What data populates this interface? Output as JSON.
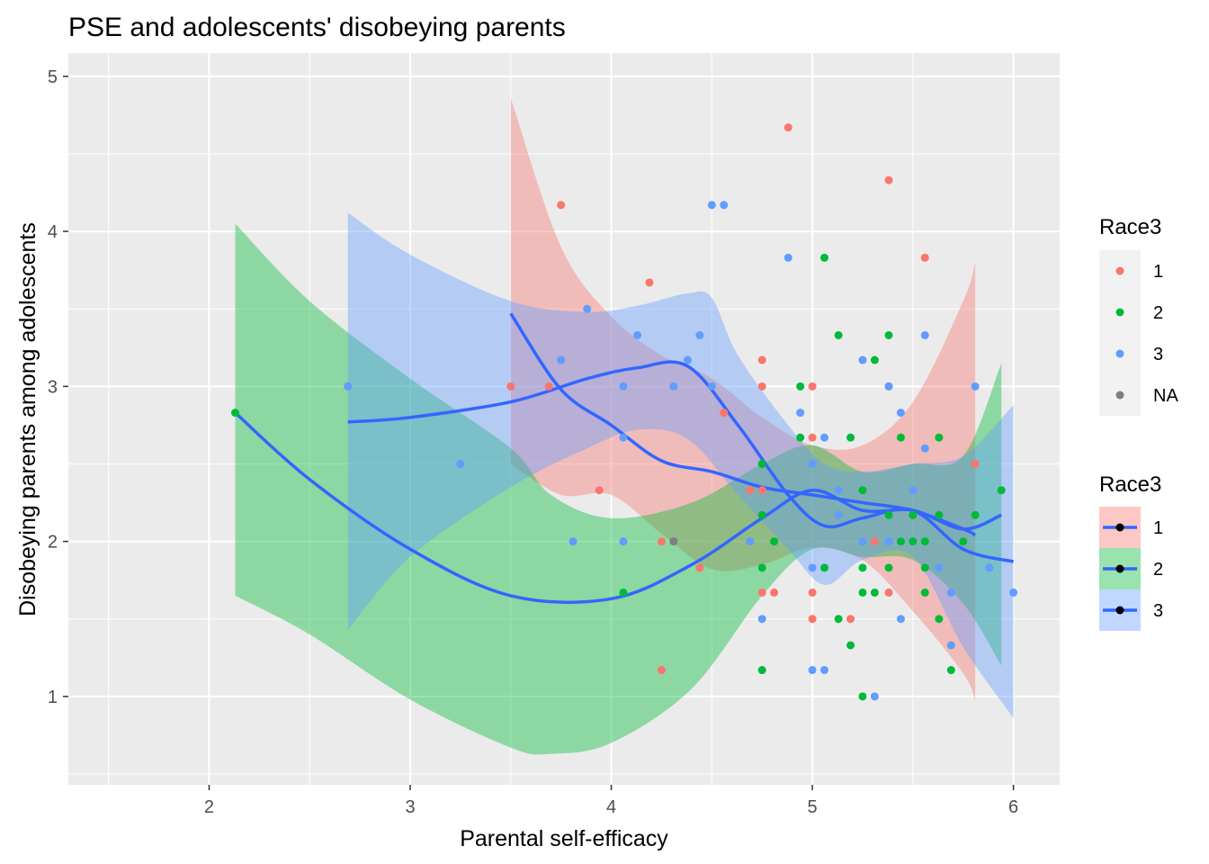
{
  "chart_data": {
    "type": "scatter",
    "title": "PSE and adolescents' disobeying parents",
    "xlabel": "Parental self-efficacy",
    "ylabel": "Disobeying parents among adolescents",
    "xlim": [
      1.3,
      6.23
    ],
    "ylim": [
      0.43,
      5.15
    ],
    "x_ticks": [
      "2",
      "3",
      "4",
      "5",
      "6"
    ],
    "y_ticks": [
      "1",
      "2",
      "3",
      "4",
      "5"
    ],
    "grid": true,
    "legend_position": "right",
    "legend_points": {
      "title": "Race3",
      "entries": [
        {
          "label": "1",
          "color": "#F8766D"
        },
        {
          "label": "2",
          "color": "#00BA38"
        },
        {
          "label": "3",
          "color": "#619CFF"
        },
        {
          "label": "NA",
          "color": "#7F7F7F"
        }
      ]
    },
    "legend_smooth": {
      "title": "Race3",
      "entries": [
        {
          "label": "1",
          "fill": "#F8766D"
        },
        {
          "label": "2",
          "fill": "#00BA38"
        },
        {
          "label": "3",
          "fill": "#619CFF"
        }
      ],
      "line_color": "#3366FF"
    },
    "series": [
      {
        "group": "1",
        "color": "#F8766D",
        "points": [
          [
            3.5,
            3.0
          ],
          [
            3.69,
            3.0
          ],
          [
            3.75,
            4.17
          ],
          [
            3.94,
            2.33
          ],
          [
            4.19,
            3.67
          ],
          [
            4.25,
            2.0
          ],
          [
            4.25,
            1.17
          ],
          [
            4.44,
            1.83
          ],
          [
            4.56,
            2.83
          ],
          [
            4.69,
            2.33
          ],
          [
            4.75,
            3.17
          ],
          [
            4.75,
            3.0
          ],
          [
            4.75,
            2.33
          ],
          [
            4.75,
            1.67
          ],
          [
            4.81,
            1.67
          ],
          [
            4.88,
            4.67
          ],
          [
            5.0,
            3.0
          ],
          [
            5.0,
            2.67
          ],
          [
            5.0,
            1.67
          ],
          [
            5.0,
            1.5
          ],
          [
            5.19,
            1.5
          ],
          [
            5.31,
            2.0
          ],
          [
            5.38,
            4.33
          ],
          [
            5.38,
            3.0
          ],
          [
            5.38,
            1.67
          ],
          [
            5.56,
            3.83
          ],
          [
            5.81,
            2.5
          ]
        ],
        "smooth": [
          [
            3.5,
            3.47
          ],
          [
            3.75,
            2.98
          ],
          [
            4.0,
            2.75
          ],
          [
            4.25,
            2.52
          ],
          [
            4.5,
            2.45
          ],
          [
            4.75,
            2.35
          ],
          [
            5.0,
            2.3
          ],
          [
            5.25,
            2.25
          ],
          [
            5.5,
            2.2
          ],
          [
            5.75,
            2.08
          ],
          [
            5.81,
            2.04
          ]
        ],
        "band_upper": [
          [
            3.5,
            4.86
          ],
          [
            3.75,
            3.9
          ],
          [
            4.0,
            3.45
          ],
          [
            4.25,
            3.2
          ],
          [
            4.5,
            3.05
          ],
          [
            4.75,
            2.8
          ],
          [
            5.0,
            2.62
          ],
          [
            5.25,
            2.62
          ],
          [
            5.5,
            2.9
          ],
          [
            5.75,
            3.55
          ],
          [
            5.81,
            3.8
          ]
        ],
        "band_lower": [
          [
            3.5,
            2.5
          ],
          [
            3.75,
            2.3
          ],
          [
            4.0,
            2.3
          ],
          [
            4.25,
            2.05
          ],
          [
            4.5,
            1.82
          ],
          [
            4.75,
            1.85
          ],
          [
            5.0,
            1.96
          ],
          [
            5.25,
            1.88
          ],
          [
            5.5,
            1.55
          ],
          [
            5.75,
            1.15
          ],
          [
            5.81,
            0.97
          ]
        ]
      },
      {
        "group": "2",
        "color": "#00BA38",
        "points": [
          [
            2.13,
            2.83
          ],
          [
            4.06,
            1.67
          ],
          [
            4.75,
            2.5
          ],
          [
            4.75,
            2.17
          ],
          [
            4.75,
            1.83
          ],
          [
            4.75,
            1.17
          ],
          [
            4.81,
            2.0
          ],
          [
            4.94,
            3.0
          ],
          [
            4.94,
            2.67
          ],
          [
            5.06,
            3.83
          ],
          [
            5.06,
            1.83
          ],
          [
            5.13,
            3.33
          ],
          [
            5.13,
            1.5
          ],
          [
            5.19,
            2.67
          ],
          [
            5.19,
            1.33
          ],
          [
            5.25,
            2.33
          ],
          [
            5.25,
            1.83
          ],
          [
            5.25,
            1.67
          ],
          [
            5.25,
            1.0
          ],
          [
            5.31,
            3.17
          ],
          [
            5.31,
            1.67
          ],
          [
            5.38,
            3.33
          ],
          [
            5.38,
            2.17
          ],
          [
            5.38,
            1.83
          ],
          [
            5.44,
            2.67
          ],
          [
            5.44,
            2.0
          ],
          [
            5.5,
            2.17
          ],
          [
            5.5,
            2.0
          ],
          [
            5.56,
            2.0
          ],
          [
            5.56,
            1.83
          ],
          [
            5.56,
            1.67
          ],
          [
            5.63,
            2.67
          ],
          [
            5.63,
            2.17
          ],
          [
            5.63,
            1.5
          ],
          [
            5.69,
            1.17
          ],
          [
            5.75,
            2.0
          ],
          [
            5.81,
            2.17
          ],
          [
            5.94,
            2.33
          ]
        ],
        "smooth": [
          [
            2.13,
            2.83
          ],
          [
            2.5,
            2.4
          ],
          [
            3.0,
            1.95
          ],
          [
            3.5,
            1.65
          ],
          [
            4.0,
            1.63
          ],
          [
            4.4,
            1.85
          ],
          [
            4.75,
            2.15
          ],
          [
            5.0,
            2.33
          ],
          [
            5.25,
            2.2
          ],
          [
            5.5,
            2.2
          ],
          [
            5.75,
            2.08
          ],
          [
            5.94,
            2.17
          ]
        ],
        "band_upper": [
          [
            2.13,
            4.05
          ],
          [
            2.5,
            3.55
          ],
          [
            3.0,
            3.05
          ],
          [
            3.5,
            2.6
          ],
          [
            3.7,
            2.3
          ],
          [
            4.0,
            2.15
          ],
          [
            4.4,
            2.25
          ],
          [
            4.75,
            2.5
          ],
          [
            5.0,
            2.62
          ],
          [
            5.25,
            2.45
          ],
          [
            5.5,
            2.5
          ],
          [
            5.75,
            2.55
          ],
          [
            5.94,
            3.15
          ]
        ],
        "band_lower": [
          [
            2.13,
            1.65
          ],
          [
            2.5,
            1.4
          ],
          [
            3.0,
            0.98
          ],
          [
            3.5,
            0.67
          ],
          [
            3.7,
            0.63
          ],
          [
            4.0,
            0.7
          ],
          [
            4.4,
            1.05
          ],
          [
            4.75,
            1.65
          ],
          [
            5.0,
            1.95
          ],
          [
            5.25,
            1.9
          ],
          [
            5.5,
            1.88
          ],
          [
            5.75,
            1.6
          ],
          [
            5.94,
            1.2
          ]
        ]
      },
      {
        "group": "3",
        "color": "#619CFF",
        "points": [
          [
            2.69,
            3.0
          ],
          [
            3.25,
            2.5
          ],
          [
            3.75,
            3.17
          ],
          [
            3.81,
            2.0
          ],
          [
            3.88,
            3.5
          ],
          [
            4.06,
            3.0
          ],
          [
            4.06,
            2.67
          ],
          [
            4.06,
            2.0
          ],
          [
            4.13,
            3.33
          ],
          [
            4.31,
            3.0
          ],
          [
            4.38,
            3.17
          ],
          [
            4.44,
            3.33
          ],
          [
            4.5,
            4.17
          ],
          [
            4.5,
            3.0
          ],
          [
            4.56,
            4.17
          ],
          [
            4.69,
            2.0
          ],
          [
            4.75,
            1.5
          ],
          [
            4.88,
            3.83
          ],
          [
            4.94,
            2.83
          ],
          [
            5.0,
            2.5
          ],
          [
            5.0,
            1.83
          ],
          [
            5.0,
            1.17
          ],
          [
            5.06,
            2.67
          ],
          [
            5.06,
            1.17
          ],
          [
            5.13,
            2.33
          ],
          [
            5.13,
            2.17
          ],
          [
            5.25,
            3.17
          ],
          [
            5.25,
            2.0
          ],
          [
            5.31,
            1.0
          ],
          [
            5.38,
            3.0
          ],
          [
            5.38,
            2.0
          ],
          [
            5.44,
            2.83
          ],
          [
            5.44,
            1.5
          ],
          [
            5.5,
            2.33
          ],
          [
            5.56,
            3.33
          ],
          [
            5.56,
            2.6
          ],
          [
            5.63,
            1.83
          ],
          [
            5.69,
            1.67
          ],
          [
            5.69,
            1.33
          ],
          [
            5.81,
            3.0
          ],
          [
            5.88,
            1.83
          ],
          [
            6.0,
            1.67
          ]
        ],
        "smooth": [
          [
            2.69,
            2.77
          ],
          [
            3.0,
            2.8
          ],
          [
            3.5,
            2.9
          ],
          [
            3.88,
            3.05
          ],
          [
            4.13,
            3.12
          ],
          [
            4.38,
            3.13
          ],
          [
            4.63,
            2.75
          ],
          [
            4.88,
            2.3
          ],
          [
            5.06,
            2.1
          ],
          [
            5.25,
            2.15
          ],
          [
            5.5,
            2.2
          ],
          [
            5.75,
            1.95
          ],
          [
            6.0,
            1.87
          ]
        ],
        "band_upper": [
          [
            2.69,
            4.12
          ],
          [
            3.0,
            3.85
          ],
          [
            3.5,
            3.55
          ],
          [
            3.88,
            3.48
          ],
          [
            4.13,
            3.52
          ],
          [
            4.38,
            3.6
          ],
          [
            4.5,
            3.57
          ],
          [
            4.63,
            3.2
          ],
          [
            4.88,
            2.75
          ],
          [
            5.06,
            2.5
          ],
          [
            5.25,
            2.45
          ],
          [
            5.5,
            2.5
          ],
          [
            5.75,
            2.55
          ],
          [
            6.0,
            2.88
          ]
        ],
        "band_lower": [
          [
            2.69,
            1.43
          ],
          [
            3.0,
            1.9
          ],
          [
            3.5,
            2.35
          ],
          [
            3.88,
            2.6
          ],
          [
            4.13,
            2.72
          ],
          [
            4.38,
            2.66
          ],
          [
            4.63,
            2.3
          ],
          [
            4.88,
            1.95
          ],
          [
            5.06,
            1.72
          ],
          [
            5.25,
            1.88
          ],
          [
            5.5,
            1.9
          ],
          [
            5.75,
            1.32
          ],
          [
            6.0,
            0.86
          ]
        ]
      },
      {
        "group": "NA",
        "color": "#7F7F7F",
        "points": [
          [
            4.31,
            2.0
          ]
        ]
      }
    ]
  }
}
